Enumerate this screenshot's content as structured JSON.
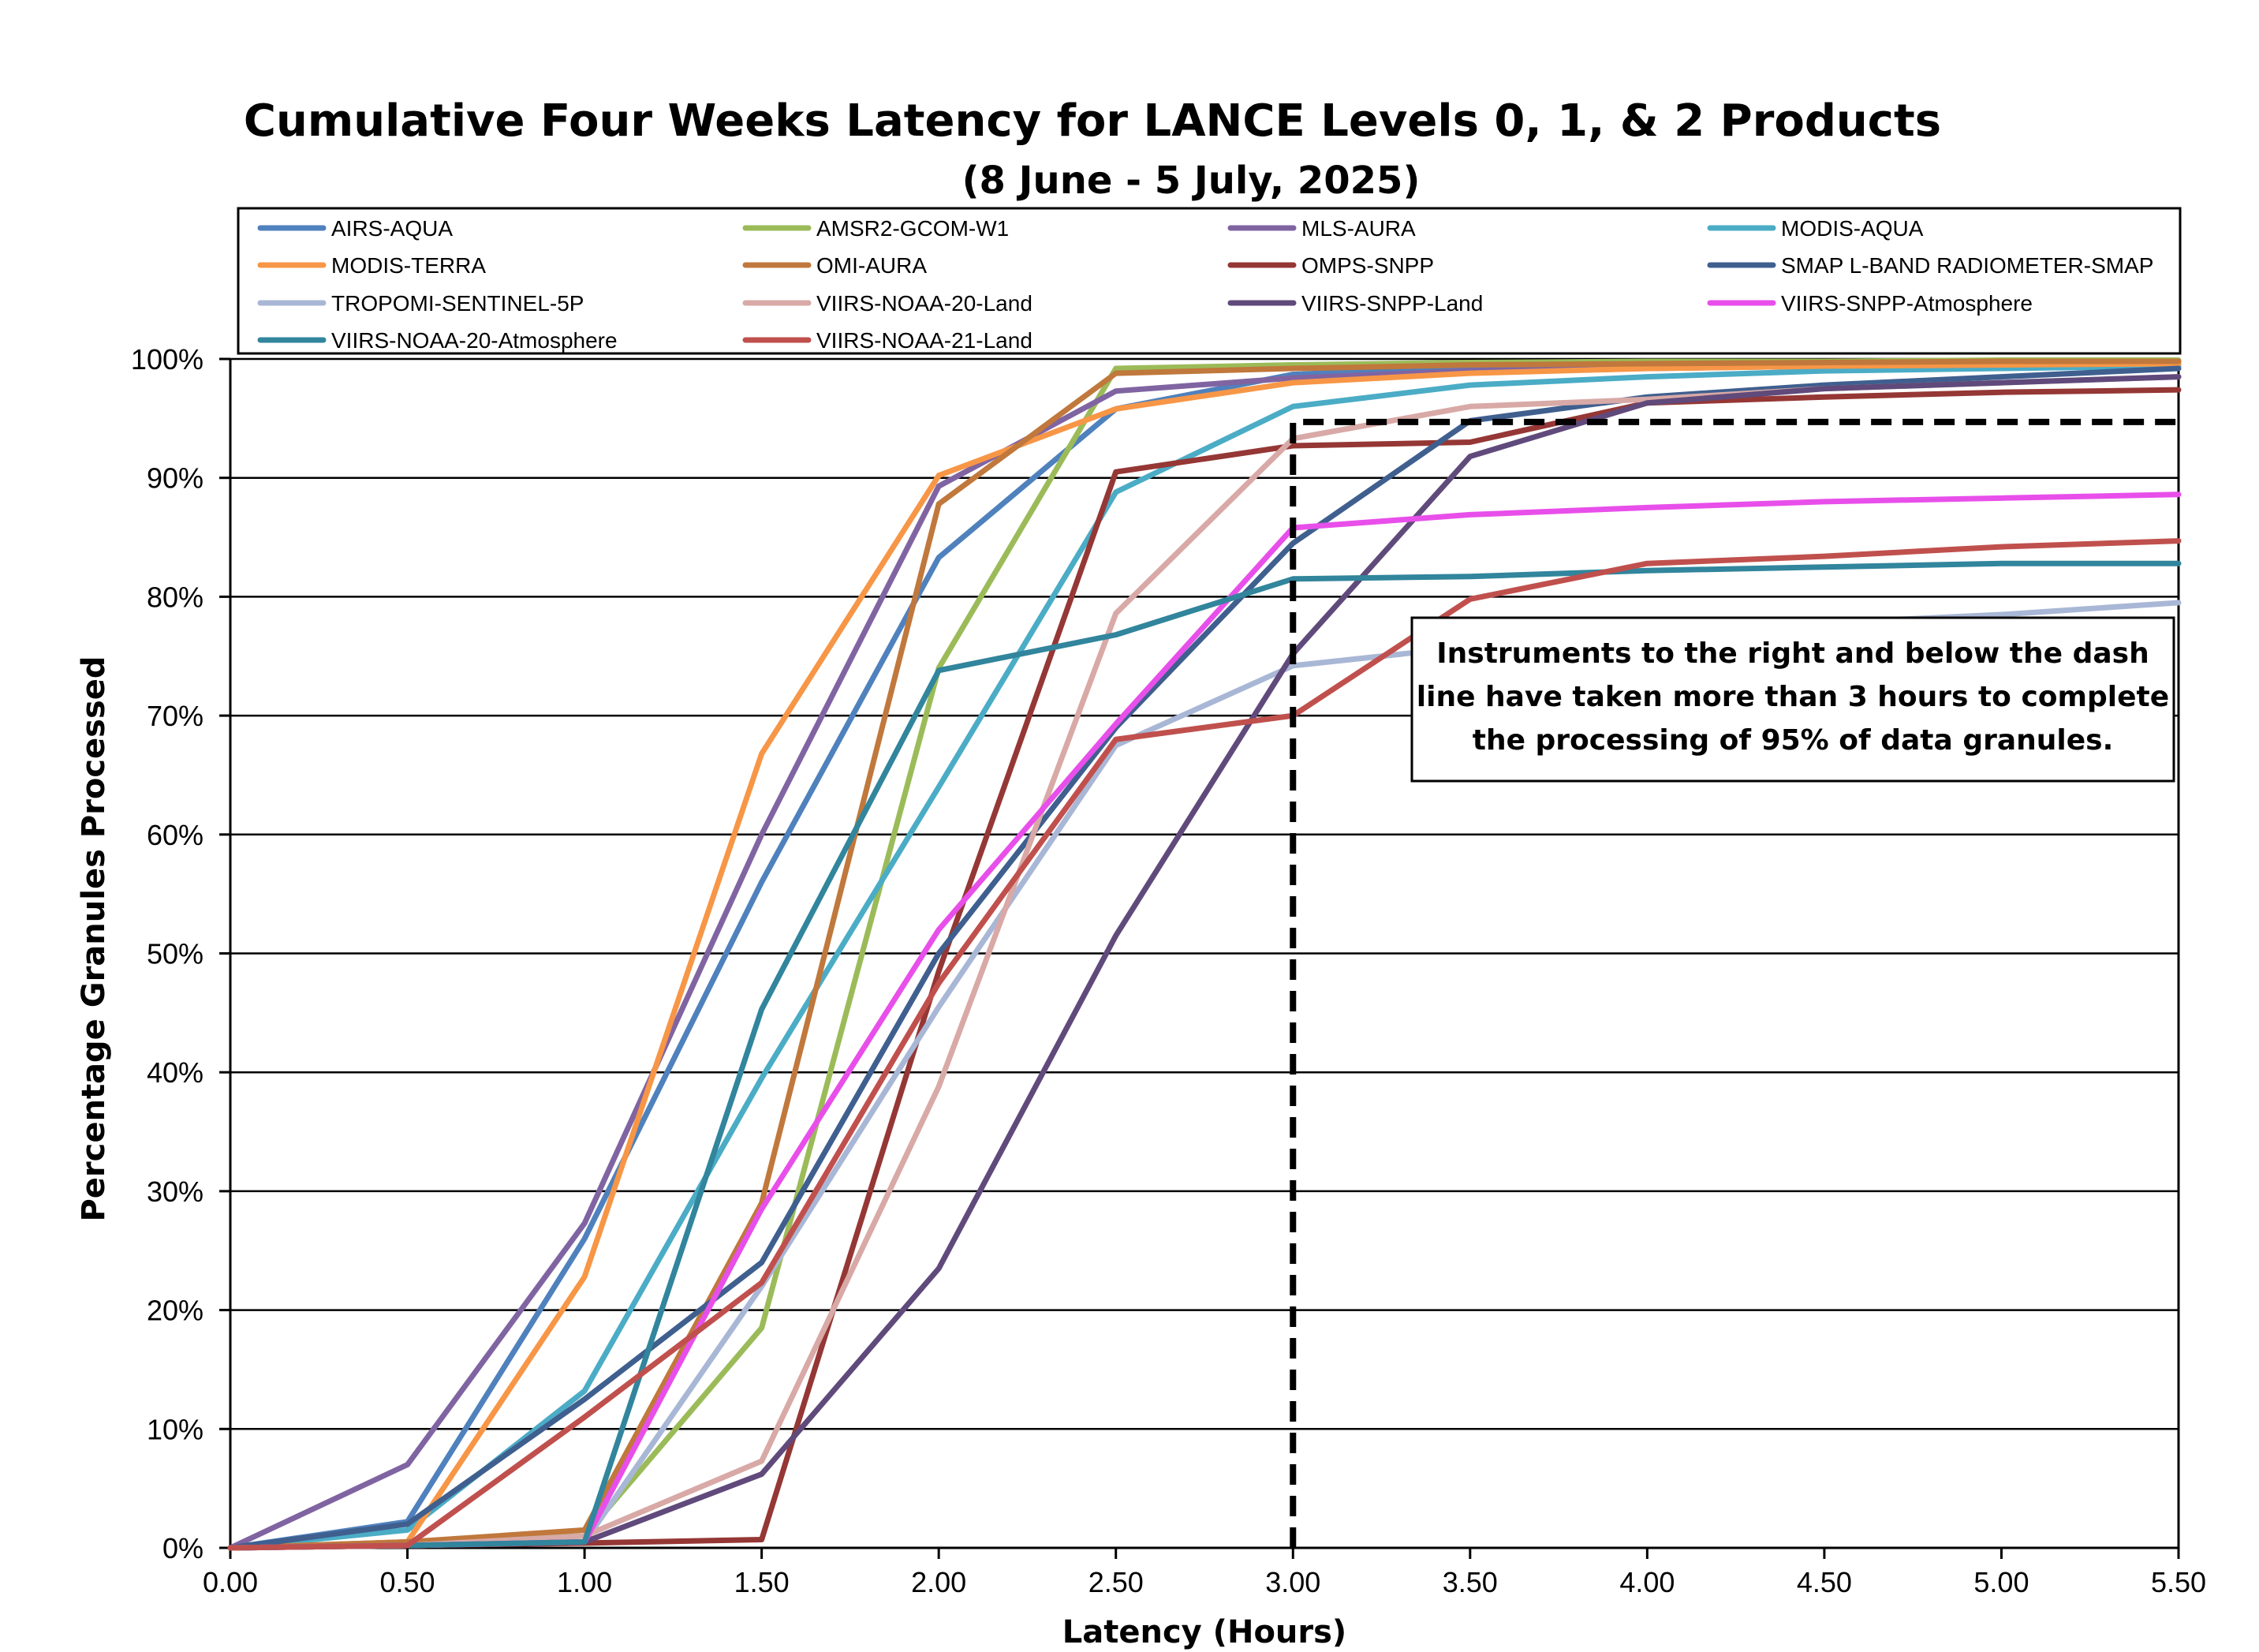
{
  "chart_data": {
    "type": "line",
    "title": "Cumulative Four Weeks Latency  for LANCE Levels 0, 1, & 2 Products",
    "subtitle": "(8  June   -  5  July,  2025)",
    "xlabel": "Latency (Hours)",
    "ylabel": "Percentage Granules Processed",
    "x_ticks": [
      "0.00",
      "0.50",
      "1.00",
      "1.50",
      "2.00",
      "2.50",
      "3.00",
      "3.50",
      "4.00",
      "4.50",
      "5.00",
      "5.50"
    ],
    "y_ticks": [
      "0%",
      "10%",
      "20%",
      "30%",
      "40%",
      "50%",
      "60%",
      "70%",
      "80%",
      "90%",
      "100%"
    ],
    "xlim": [
      0,
      5.5
    ],
    "ylim": [
      0,
      100
    ],
    "grid": "horizontal",
    "legend": "top",
    "annotation": {
      "lines": [
        "Instruments to the right and below the dash",
        "line have taken more than 3 hours to complete",
        "the processing of 95% of data granules."
      ],
      "dash_line": {
        "x": [
          3.0,
          3.0,
          5.5
        ],
        "y": [
          0,
          94.7,
          94.7
        ]
      }
    },
    "x": [
      0,
      0.5,
      1.0,
      1.5,
      2.0,
      2.5,
      3.0,
      3.5,
      4.0,
      4.5,
      5.0,
      5.5
    ],
    "series": [
      {
        "name": "AIRS-AQUA",
        "color": "#4F81BD",
        "values": [
          0,
          2.2,
          26,
          56,
          83.3,
          95.8,
          98.7,
          99.3,
          99.5,
          99.6,
          99.7,
          99.8
        ]
      },
      {
        "name": "AMSR2-GCOM-W1",
        "color": "#9BBB59",
        "values": [
          0,
          0.5,
          1.0,
          18.5,
          74,
          99.2,
          99.5,
          99.7,
          99.8,
          99.8,
          99.9,
          99.9
        ]
      },
      {
        "name": "MLS-AURA",
        "color": "#8064A2",
        "values": [
          0,
          7,
          27.3,
          60,
          89.3,
          97.3,
          98.4,
          99.0,
          99.2,
          99.4,
          99.5,
          99.6
        ]
      },
      {
        "name": "MODIS-AQUA",
        "color": "#4BACC6",
        "values": [
          0,
          1.5,
          13.2,
          39.5,
          64,
          88.8,
          96.0,
          97.8,
          98.5,
          99.0,
          99.2,
          99.4
        ]
      },
      {
        "name": "MODIS-TERRA",
        "color": "#F79646",
        "values": [
          0,
          0.5,
          22.8,
          66.8,
          90.2,
          95.8,
          98.0,
          98.8,
          99.2,
          99.4,
          99.5,
          99.6
        ]
      },
      {
        "name": "OMI-AURA",
        "color": "#C0783C",
        "values": [
          0,
          0.5,
          1.5,
          29,
          87.8,
          98.8,
          99.2,
          99.5,
          99.6,
          99.7,
          99.8,
          99.8
        ]
      },
      {
        "name": "OMPS-SNPP",
        "color": "#953735",
        "values": [
          0,
          0.2,
          0.4,
          0.7,
          48.5,
          90.5,
          92.7,
          93.0,
          96.3,
          96.8,
          97.2,
          97.4
        ]
      },
      {
        "name": "SMAP L-BAND RADIOMETER-SMAP",
        "color": "#3F5F8F",
        "values": [
          0,
          2.0,
          12.5,
          24,
          50,
          69,
          84.5,
          94.8,
          96.8,
          97.8,
          98.5,
          99.2
        ]
      },
      {
        "name": "TROPOMI-SENTINEL-5P",
        "color": "#A9B7D6",
        "values": [
          0,
          0.2,
          0.5,
          22,
          45.5,
          67.5,
          74.2,
          75.8,
          77.0,
          77.8,
          78.5,
          79.5
        ]
      },
      {
        "name": "VIIRS-NOAA-20-Land",
        "color": "#D8A9A6",
        "values": [
          0,
          0.2,
          1.0,
          7.3,
          38.8,
          78.6,
          93.3,
          96.0,
          96.6,
          97.5,
          98.0,
          98.5
        ]
      },
      {
        "name": "VIIRS-SNPP-Land",
        "color": "#604A7B",
        "values": [
          0,
          0.2,
          0.5,
          6.2,
          23.5,
          51.5,
          75.2,
          91.8,
          96.3,
          97.5,
          98.0,
          98.5
        ]
      },
      {
        "name": "VIIRS-SNPP-Atmosphere",
        "color": "#E84FEA",
        "values": [
          0,
          0.2,
          0.5,
          28.5,
          52,
          69.3,
          85.8,
          86.9,
          87.5,
          88.0,
          88.3,
          88.6
        ]
      },
      {
        "name": "VIIRS-NOAA-20-Atmosphere",
        "color": "#31859C",
        "values": [
          0,
          0.2,
          0.5,
          45.3,
          73.8,
          76.8,
          81.5,
          81.7,
          82.2,
          82.5,
          82.8,
          82.8
        ]
      },
      {
        "name": "VIIRS-NOAA-21-Land",
        "color": "#C0504D",
        "values": [
          0,
          0.2,
          11,
          22.3,
          47.5,
          68,
          70,
          79.8,
          82.8,
          83.4,
          84.2,
          84.7
        ]
      }
    ]
  }
}
